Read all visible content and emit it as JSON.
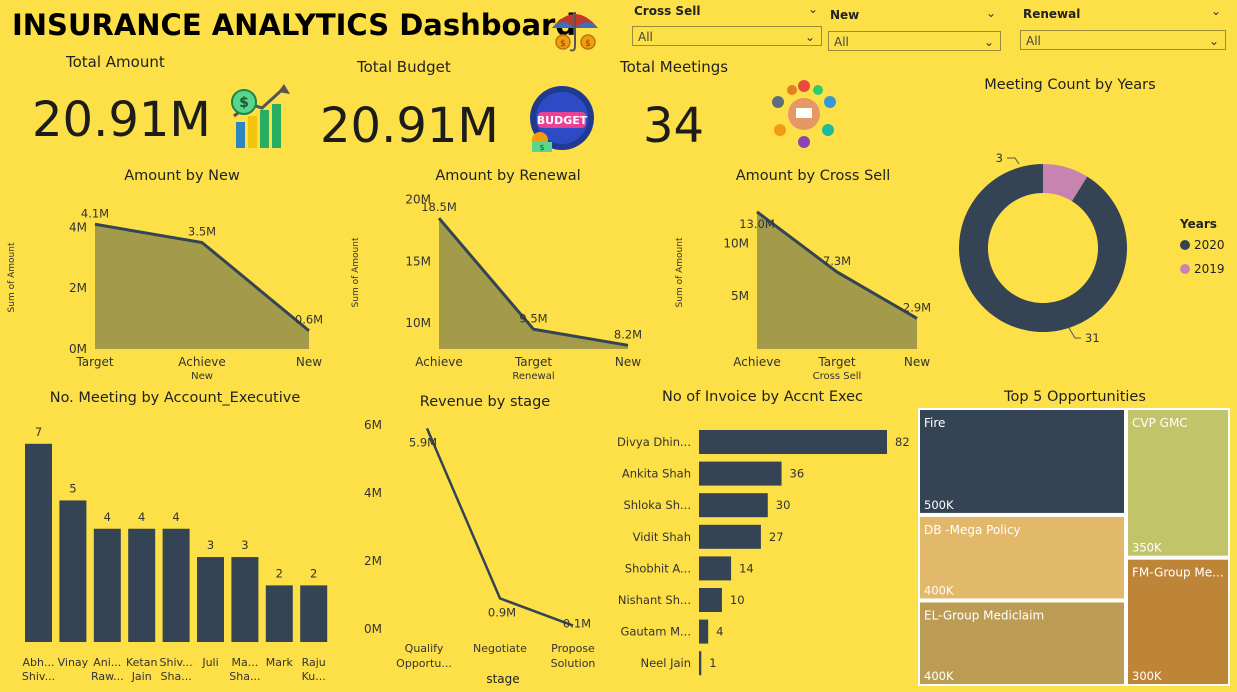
{
  "header": {
    "title": "INSURANCE ANALYTICS Dashboard"
  },
  "icons": {
    "umbrella": "umbrella-coins-icon",
    "amount": "money-growth-chart-icon",
    "budget": "budget-icon",
    "meetings": "meeting-people-icon"
  },
  "slicers": [
    {
      "label": "Cross Sell",
      "value": "All"
    },
    {
      "label": "New",
      "value": "All"
    },
    {
      "label": "Renewal",
      "value": "All"
    }
  ],
  "kpis": {
    "total_amount": {
      "label": "Total Amount",
      "value": "20.91M"
    },
    "total_budget": {
      "label": "Total Budget",
      "value": "20.91M"
    },
    "total_meetings": {
      "label": "Total Meetings",
      "value": "34"
    }
  },
  "colors": {
    "background": "#FDE047",
    "dark": "#344454",
    "olive_fill": "#A39A4A",
    "pink": "#C784B0",
    "treemap": [
      "#344454",
      "#C2C46A",
      "#E2B86A",
      "#BC9C54",
      "#BE8438"
    ]
  },
  "chart_data": [
    {
      "id": "amount_by_new",
      "type": "area",
      "title": "Amount by New",
      "xlabel": "New",
      "ylabel": "Sum of Amount",
      "categories": [
        "Target",
        "Achieve",
        "New"
      ],
      "values": [
        4.1,
        3.5,
        0.6
      ],
      "data_labels": [
        "4.1M",
        "3.5M",
        "0.6M"
      ],
      "yticks": [
        "0M",
        "2M",
        "4M"
      ],
      "ylim": [
        0,
        4.7
      ],
      "unit": "M"
    },
    {
      "id": "amount_by_renewal",
      "type": "area",
      "title": "Amount by Renewal",
      "xlabel": "Renewal",
      "ylabel": "Sum of Amount",
      "categories": [
        "Achieve",
        "Target",
        "New"
      ],
      "values": [
        18.5,
        9.5,
        8.2
      ],
      "data_labels": [
        "18.5M",
        "9.5M",
        "8.2M"
      ],
      "yticks": [
        "10M",
        "15M",
        "20M"
      ],
      "ylim": [
        7.9,
        20.3
      ],
      "unit": "M"
    },
    {
      "id": "amount_by_cross_sell",
      "type": "area",
      "title": "Amount by Cross Sell",
      "xlabel": "Cross Sell",
      "ylabel": "Sum of Amount",
      "categories": [
        "Achieve",
        "Target",
        "New"
      ],
      "values": [
        13.0,
        7.3,
        2.9
      ],
      "data_labels": [
        "13.0M",
        "7.3M",
        "2.9M"
      ],
      "yticks": [
        "5M",
        "10M"
      ],
      "ylim": [
        0,
        14.5
      ],
      "unit": "M"
    },
    {
      "id": "meeting_count_by_years",
      "type": "pie",
      "title": "Meeting Count by Years",
      "legend_title": "Years",
      "legend_position": "right",
      "labels": [
        "2020",
        "2019"
      ],
      "values": [
        31,
        3
      ]
    },
    {
      "id": "meetings_by_account_exec",
      "type": "bar",
      "title": "No. Meeting by Account_Executive",
      "categories": [
        "Abh... Shiv...",
        "Vinay",
        "Ani... Raw...",
        "Ketan Jain",
        "Shiv... Sha...",
        "Juli",
        "Ma... Sha...",
        "Mark",
        "Raju Ku..."
      ],
      "values": [
        7,
        5,
        4,
        4,
        4,
        3,
        3,
        2,
        2
      ],
      "ylim": [
        0,
        7.7
      ]
    },
    {
      "id": "revenue_by_stage",
      "type": "line",
      "title": "Revenue by stage",
      "xlabel": "stage",
      "categories": [
        "Qualify Opportu...",
        "Negotiate",
        "Propose Solution"
      ],
      "values": [
        5.9,
        0.9,
        0.1
      ],
      "data_labels": [
        "5.9M",
        "0.9M",
        "0.1M"
      ],
      "yticks": [
        "0M",
        "2M",
        "4M",
        "6M"
      ],
      "ylim": [
        0,
        6
      ],
      "unit": "M"
    },
    {
      "id": "invoice_by_accnt_exec",
      "type": "bar",
      "orientation": "horizontal",
      "title": "No of Invoice by Accnt Exec",
      "categories": [
        "Divya Dhin...",
        "Ankita Shah",
        "Shloka Sh...",
        "Vidit Shah",
        "Shobhit A...",
        "Nishant Sh...",
        "Gautam M...",
        "Neel Jain"
      ],
      "values": [
        82,
        36,
        30,
        27,
        14,
        10,
        4,
        1
      ],
      "xlim": [
        0,
        82
      ]
    },
    {
      "id": "top5_opportunities",
      "type": "treemap",
      "title": "Top 5 Opportunities",
      "labels": [
        "Fire",
        "CVP GMC",
        "DB -Mega Policy",
        "EL-Group Mediclaim",
        "FM-Group Me..."
      ],
      "values": [
        500,
        350,
        400,
        400,
        300
      ],
      "value_labels": [
        "500K",
        "350K",
        "400K",
        "400K",
        "300K"
      ]
    }
  ]
}
